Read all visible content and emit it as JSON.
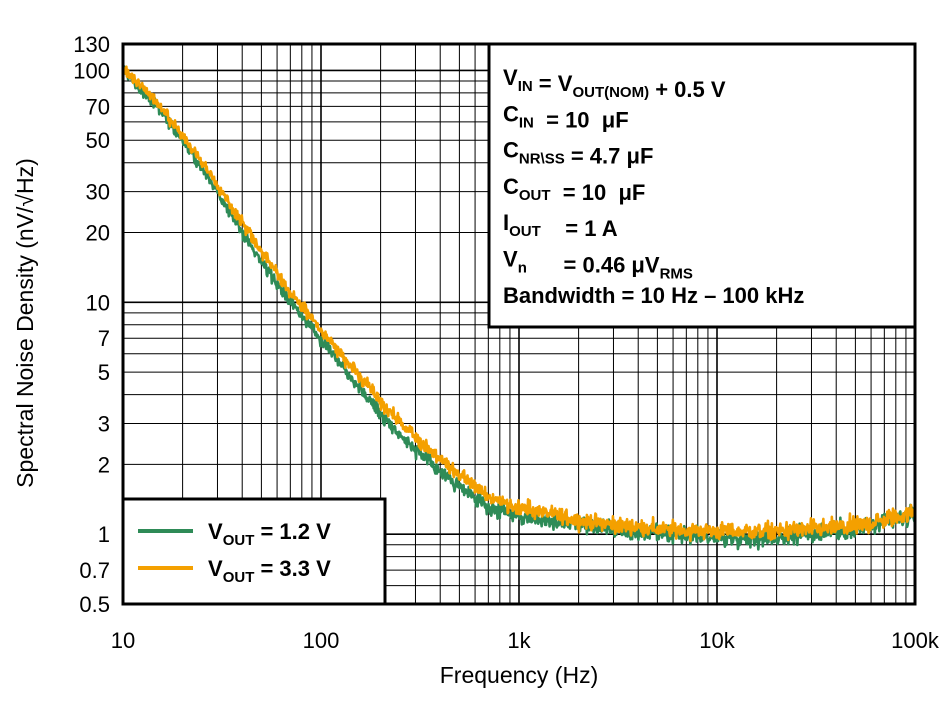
{
  "chart_data": {
    "type": "line",
    "title": "",
    "xlabel": "Frequency (Hz)",
    "ylabel": "Spectral Noise Density (nV/√Hz)",
    "xscale": "log",
    "yscale": "log",
    "xlim": [
      10,
      100000
    ],
    "ylim": [
      0.5,
      130
    ],
    "grid": true,
    "x_ticks": [
      {
        "value": 10,
        "label": "10"
      },
      {
        "value": 100,
        "label": "100"
      },
      {
        "value": 1000,
        "label": "1k"
      },
      {
        "value": 10000,
        "label": "10k"
      },
      {
        "value": 100000,
        "label": "100k"
      }
    ],
    "y_ticks": [
      {
        "value": 0.5,
        "label": "0.5"
      },
      {
        "value": 0.7,
        "label": "0.7"
      },
      {
        "value": 1,
        "label": "1"
      },
      {
        "value": 2,
        "label": "2"
      },
      {
        "value": 3,
        "label": "3"
      },
      {
        "value": 5,
        "label": "5"
      },
      {
        "value": 7,
        "label": "7"
      },
      {
        "value": 10,
        "label": "10"
      },
      {
        "value": 20,
        "label": "20"
      },
      {
        "value": 30,
        "label": "30"
      },
      {
        "value": 50,
        "label": "50"
      },
      {
        "value": 70,
        "label": "70"
      },
      {
        "value": 100,
        "label": "100"
      },
      {
        "value": 130,
        "label": "130"
      }
    ],
    "legend_position": "bottom-left",
    "series": [
      {
        "name": "VOUT = 1.2 V",
        "label_main": "V",
        "label_sub": "OUT",
        "label_rest": " = 1.2 V",
        "color": "#2e8b57",
        "x": [
          10,
          12,
          15,
          20,
          25,
          30,
          40,
          50,
          70,
          100,
          150,
          200,
          300,
          500,
          700,
          1000,
          2000,
          3000,
          5000,
          10000,
          20000,
          50000,
          70000,
          100000
        ],
        "y": [
          100,
          85,
          70,
          50,
          38,
          30,
          20,
          15,
          10,
          7,
          4.5,
          3.3,
          2.3,
          1.6,
          1.3,
          1.2,
          1.1,
          1.05,
          1.0,
          0.97,
          0.97,
          1.05,
          1.12,
          1.2
        ],
        "noise_amplitude": 0.09
      },
      {
        "name": "VOUT = 3.3 V",
        "label_main": "V",
        "label_sub": "OUT",
        "label_rest": " = 3.3 V",
        "color": "#f4a000",
        "x": [
          10,
          12,
          15,
          20,
          25,
          30,
          40,
          50,
          70,
          100,
          150,
          200,
          300,
          500,
          700,
          1000,
          2000,
          3000,
          5000,
          10000,
          20000,
          50000,
          70000,
          100000
        ],
        "y": [
          102,
          88,
          72,
          52,
          40,
          32,
          22,
          16.5,
          11,
          7.6,
          5,
          3.7,
          2.6,
          1.8,
          1.45,
          1.3,
          1.15,
          1.1,
          1.05,
          1.03,
          1.03,
          1.08,
          1.15,
          1.25
        ],
        "noise_amplitude": 0.09
      }
    ],
    "annotation_lines": [
      {
        "parts": [
          {
            "t": "V"
          },
          {
            "t": "IN",
            "sub": true
          },
          {
            "t": " = V"
          },
          {
            "t": "OUT(NOM)",
            "sub": true
          },
          {
            "t": " + 0.5 V"
          }
        ]
      },
      {
        "parts": [
          {
            "t": "C"
          },
          {
            "t": "IN",
            "sub": true
          },
          {
            "t": "  = 10  μF"
          }
        ]
      },
      {
        "parts": [
          {
            "t": "C"
          },
          {
            "t": "NR\\SS",
            "sub": true
          },
          {
            "t": " = 4.7 μF"
          }
        ]
      },
      {
        "parts": [
          {
            "t": "C"
          },
          {
            "t": "OUT",
            "sub": true
          },
          {
            "t": "  = 10  μF"
          }
        ]
      },
      {
        "parts": [
          {
            "t": "I"
          },
          {
            "t": "OUT",
            "sub": true
          },
          {
            "t": "    = 1 A"
          }
        ]
      },
      {
        "parts": [
          {
            "t": "V"
          },
          {
            "t": "n",
            "sub": true
          },
          {
            "t": "      = 0.46 μV"
          },
          {
            "t": "RMS",
            "sub": true
          }
        ]
      },
      {
        "parts": [
          {
            "t": "Bandwidth = 10 Hz – 100 kHz"
          }
        ]
      }
    ]
  }
}
